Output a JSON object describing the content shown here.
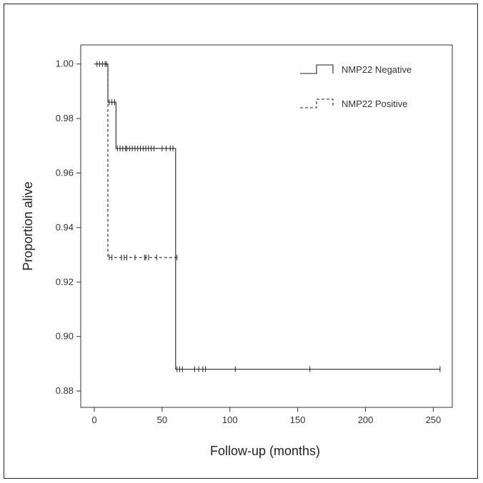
{
  "chart_data": {
    "type": "line",
    "subtype": "kaplan-meier step curve",
    "xlabel": "Follow-up (months)",
    "ylabel": "Proportion alive",
    "xlim": [
      -10,
      264
    ],
    "ylim": [
      0.874,
      1.007
    ],
    "xticks": [
      0,
      50,
      100,
      150,
      200,
      250
    ],
    "yticks": [
      0.88,
      0.9,
      0.92,
      0.94,
      0.96,
      0.98,
      1.0
    ],
    "ytick_labels": [
      "0.88",
      "0.90",
      "0.92",
      "0.94",
      "0.96",
      "0.98",
      "1.00"
    ],
    "grid": false,
    "legend_position": "top-right",
    "series": [
      {
        "name": "NMP22 Negative",
        "line_style": "solid",
        "color": "#222222",
        "steps": [
          [
            0,
            1.0
          ],
          [
            10,
            1.0
          ],
          [
            10,
            0.986
          ],
          [
            16,
            0.986
          ],
          [
            16,
            0.969
          ],
          [
            60,
            0.969
          ],
          [
            60,
            0.888
          ],
          [
            255,
            0.888
          ]
        ],
        "censored": [
          [
            2,
            1.0
          ],
          [
            4,
            1.0
          ],
          [
            6,
            1.0
          ],
          [
            8,
            1.0
          ],
          [
            9,
            1.0
          ],
          [
            11,
            0.986
          ],
          [
            13,
            0.986
          ],
          [
            15,
            0.986
          ],
          [
            17,
            0.969
          ],
          [
            19,
            0.969
          ],
          [
            21,
            0.969
          ],
          [
            23,
            0.969
          ],
          [
            24,
            0.969
          ],
          [
            26,
            0.969
          ],
          [
            28,
            0.969
          ],
          [
            30,
            0.969
          ],
          [
            32,
            0.969
          ],
          [
            34,
            0.969
          ],
          [
            36,
            0.969
          ],
          [
            38,
            0.969
          ],
          [
            40,
            0.969
          ],
          [
            42,
            0.969
          ],
          [
            44,
            0.969
          ],
          [
            50,
            0.969
          ],
          [
            53,
            0.969
          ],
          [
            56,
            0.969
          ],
          [
            58,
            0.969
          ],
          [
            61,
            0.888
          ],
          [
            63,
            0.888
          ],
          [
            65,
            0.888
          ],
          [
            74,
            0.888
          ],
          [
            77,
            0.888
          ],
          [
            80,
            0.888
          ],
          [
            82,
            0.888
          ],
          [
            104,
            0.888
          ],
          [
            159,
            0.888
          ],
          [
            255,
            0.888
          ]
        ]
      },
      {
        "name": "NMP22 Positive",
        "line_style": "dashed",
        "color": "#222222",
        "steps": [
          [
            10,
            1.0
          ],
          [
            10,
            0.929
          ],
          [
            61,
            0.929
          ]
        ],
        "censored": [
          [
            11,
            0.929
          ],
          [
            13,
            0.929
          ],
          [
            20,
            0.929
          ],
          [
            22,
            0.929
          ],
          [
            24,
            0.929
          ],
          [
            30,
            0.929
          ],
          [
            37,
            0.929
          ],
          [
            38,
            0.929
          ],
          [
            40,
            0.929
          ],
          [
            46,
            0.929
          ],
          [
            61,
            0.929
          ]
        ]
      }
    ]
  }
}
